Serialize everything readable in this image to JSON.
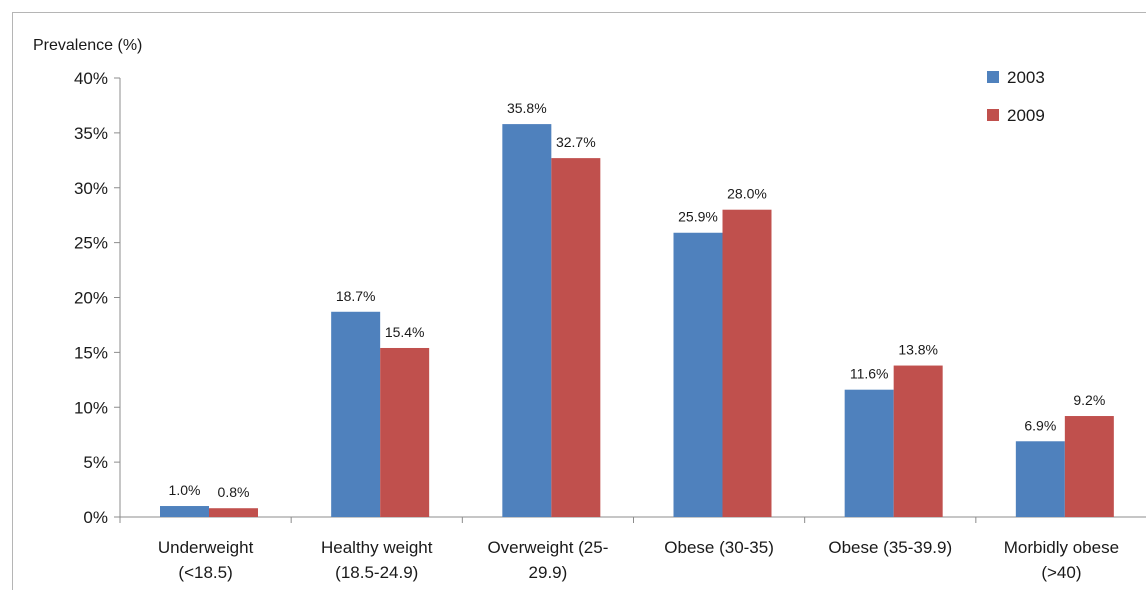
{
  "chart_data": {
    "type": "bar",
    "ylabel": "Prevalence (%)",
    "categories": [
      [
        "Underweight",
        "(<18.5)"
      ],
      [
        "Healthy weight",
        "(18.5-24.9)"
      ],
      [
        "Overweight (25-",
        "29.9)"
      ],
      [
        "Obese (30-35)"
      ],
      [
        "Obese (35-39.9)"
      ],
      [
        "Morbidly obese",
        "(>40)"
      ]
    ],
    "series": [
      {
        "name": "2003",
        "color": "#4f81bd",
        "values": [
          1.0,
          18.7,
          35.8,
          25.9,
          11.6,
          6.9
        ],
        "labels": [
          "1.0%",
          "18.7%",
          "35.8%",
          "25.9%",
          "11.6%",
          "6.9%"
        ]
      },
      {
        "name": "2009",
        "color": "#c0504d",
        "values": [
          0.8,
          15.4,
          32.7,
          28.0,
          13.8,
          9.2
        ],
        "labels": [
          "0.8%",
          "15.4%",
          "32.7%",
          "28.0%",
          "13.8%",
          "9.2%"
        ]
      }
    ],
    "ylim": [
      0,
      40
    ],
    "yticks": [
      {
        "value": 0,
        "label": "0%"
      },
      {
        "value": 5,
        "label": "5%"
      },
      {
        "value": 10,
        "label": "10%"
      },
      {
        "value": 15,
        "label": "15%"
      },
      {
        "value": 20,
        "label": "20%"
      },
      {
        "value": 25,
        "label": "25%"
      },
      {
        "value": 30,
        "label": "30%"
      },
      {
        "value": 35,
        "label": "35%"
      },
      {
        "value": 40,
        "label": "40%"
      }
    ],
    "grid": false,
    "legend_position": "top-right"
  }
}
